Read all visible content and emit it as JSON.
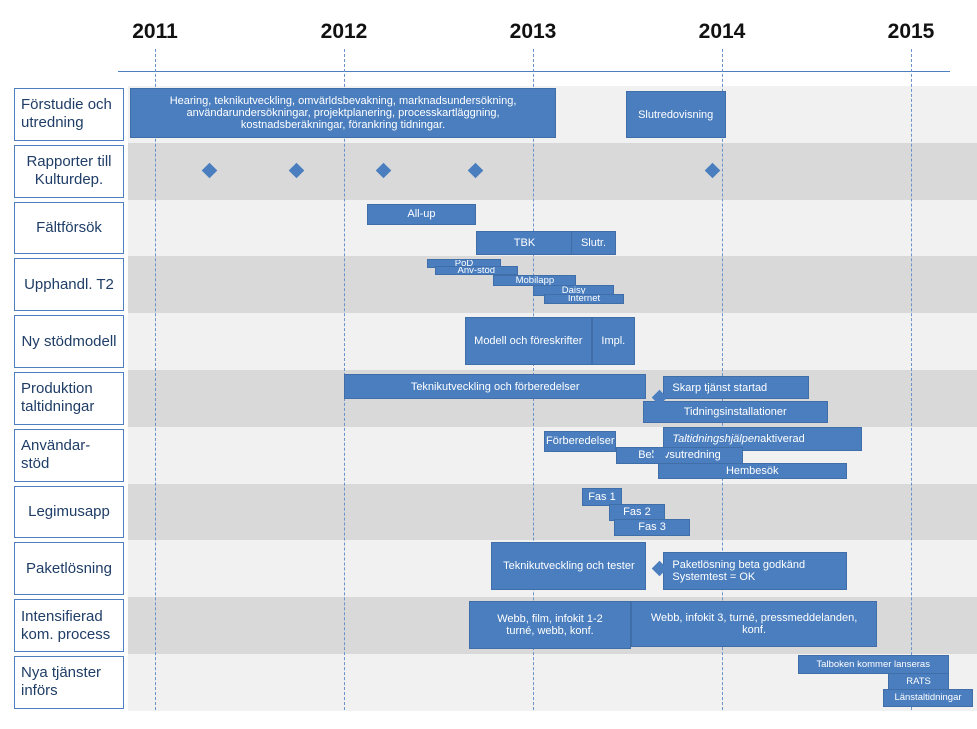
{
  "chart_data": {
    "type": "gantt",
    "title": "",
    "x_axis": {
      "years": [
        "2011",
        "2012",
        "2013",
        "2014",
        "2015"
      ]
    },
    "rows": [
      {
        "label": "Förstudie och utredning"
      },
      {
        "label": "Rapporter till Kulturdep."
      },
      {
        "label": "Fältförsök"
      },
      {
        "label": "Upphandl. T2"
      },
      {
        "label": "Ny stödmodell"
      },
      {
        "label": "Produktion taltidningar"
      },
      {
        "label": "Användar-stöd"
      },
      {
        "label": "Legimusapp"
      },
      {
        "label": "Paketlösning"
      },
      {
        "label": "Intensifierad kom. process"
      },
      {
        "label": "Nya tjänster införs"
      }
    ],
    "bars": [
      {
        "row": 0,
        "start": 2010.87,
        "end": 2013.12,
        "label": "Hearing, teknikutveckling, omvärldsbevakning, marknadsundersökning, användarundersökningar, projektplanering, processkartläggning, kostnadsberäkningar, förankring tidningar."
      },
      {
        "row": 0,
        "start": 2013.49,
        "end": 2014.02,
        "label": "Slutredovisning"
      },
      {
        "row": 2,
        "start": 2012.12,
        "end": 2012.7,
        "label": "All-up"
      },
      {
        "row": 2,
        "start": 2012.7,
        "end": 2013.21,
        "label": "TBK"
      },
      {
        "row": 2,
        "start": 2013.2,
        "end": 2013.44,
        "label": "Slutr."
      },
      {
        "row": 3,
        "start": 2012.44,
        "end": 2012.83,
        "label": "PoD"
      },
      {
        "row": 3,
        "start": 2012.48,
        "end": 2012.92,
        "label": "Anv-stöd"
      },
      {
        "row": 3,
        "start": 2012.79,
        "end": 2013.23,
        "label": "Mobilapp"
      },
      {
        "row": 3,
        "start": 2013.0,
        "end": 2013.43,
        "label": "Daisy"
      },
      {
        "row": 3,
        "start": 2013.06,
        "end": 2013.48,
        "label": "Internet"
      },
      {
        "row": 4,
        "start": 2012.64,
        "end": 2013.31,
        "label": "Modell och föreskrifter"
      },
      {
        "row": 4,
        "start": 2013.31,
        "end": 2013.54,
        "label": "Impl."
      },
      {
        "row": 5,
        "start": 2012.0,
        "end": 2013.6,
        "label": "Teknikutveckling och förberedelser"
      },
      {
        "row": 5,
        "start": 2013.69,
        "end": 2014.46,
        "label": "Skarp tjänst startad"
      },
      {
        "row": 5,
        "start": 2013.58,
        "end": 2014.56,
        "label": "Tidningsinstallationer"
      },
      {
        "row": 6,
        "start": 2013.06,
        "end": 2013.44,
        "label": "Förberedelser"
      },
      {
        "row": 6,
        "start": 2013.69,
        "end": 2014.74,
        "label": "Taltidningshjälpen aktiverad",
        "italic_prefix": "Taltidningshjälpen",
        "rest": " aktiverad"
      },
      {
        "row": 6,
        "start": 2013.44,
        "end": 2014.11,
        "label": "Behovsutredning"
      },
      {
        "row": 6,
        "start": 2013.66,
        "end": 2014.66,
        "label": "Hembesök"
      },
      {
        "row": 7,
        "start": 2013.26,
        "end": 2013.47,
        "label": "Fas 1"
      },
      {
        "row": 7,
        "start": 2013.4,
        "end": 2013.7,
        "label": "Fas 2"
      },
      {
        "row": 7,
        "start": 2013.43,
        "end": 2013.83,
        "label": "Fas 3"
      },
      {
        "row": 8,
        "start": 2012.78,
        "end": 2013.6,
        "label": "Teknikutveckling och tester"
      },
      {
        "row": 8,
        "start": 2013.69,
        "end": 2014.66,
        "label": "Paketlösning beta godkänd\nSystemtest = OK"
      },
      {
        "row": 9,
        "start": 2012.66,
        "end": 2013.52,
        "label": "Webb, film, infokit 1-2\nturné, webb, konf."
      },
      {
        "row": 9,
        "start": 2013.52,
        "end": 2014.82,
        "label": "Webb, infokit 3, turné, pressmeddelanden,\nkonf."
      },
      {
        "row": 10,
        "start": 2014.4,
        "end": 2015.2,
        "label": "Talboken kommer lanseras"
      },
      {
        "row": 10,
        "start": 2014.88,
        "end": 2015.2,
        "label": "RATS"
      },
      {
        "row": 10,
        "start": 2014.85,
        "end": 2015.33,
        "label": "Länstaltidningar"
      }
    ],
    "milestones": [
      {
        "row": 1,
        "date": 2011.29
      },
      {
        "row": 1,
        "date": 2011.75
      },
      {
        "row": 1,
        "date": 2012.21
      },
      {
        "row": 1,
        "date": 2012.7
      },
      {
        "row": 1,
        "date": 2013.95
      },
      {
        "row": 5,
        "date": 2013.67
      },
      {
        "row": 6,
        "date": 2013.67
      },
      {
        "row": 8,
        "date": 2013.67
      }
    ],
    "colors": {
      "bar": "#4a7ebf",
      "milestone": "#4a7ebf",
      "label_text": "#1f3d66"
    }
  }
}
